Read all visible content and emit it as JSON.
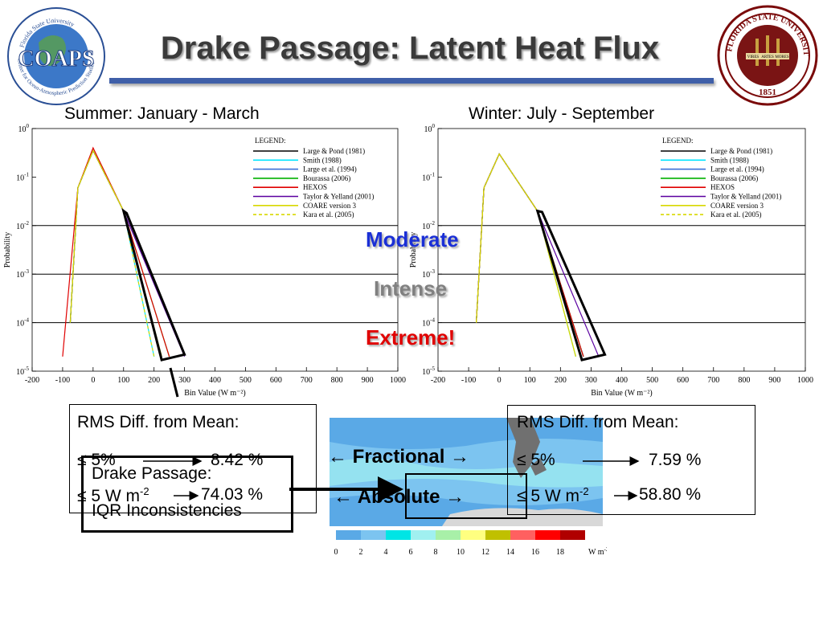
{
  "slide": {
    "title": "Drake Passage: Latent Heat Flux",
    "left_logo_text": "COAPS",
    "left_logo_ring": "Center for Ocean-Atmospheric Prediction Studies",
    "left_logo_top": "Florida State University",
    "right_seal_text": "FLORIDA STATE UNIVERSITY",
    "right_seal_year": "1851",
    "right_seal_mottos": [
      "VIRES",
      "ARTES",
      "MORES"
    ]
  },
  "panels": {
    "summer_title": "Summer: January - March",
    "winter_title": "Winter: July - September"
  },
  "levels": {
    "moderate": "Moderate",
    "intense": "Intense",
    "extreme": "Extreme!"
  },
  "summer_box": {
    "header": "RMS Diff. from Mean:",
    "frac_label": "≤ 5%",
    "frac_value": "8.42 %",
    "abs_label": "≤ 5 W m",
    "abs_sup": "-2",
    "abs_value": "74.03 %"
  },
  "winter_box": {
    "header": "RMS Diff. from Mean:",
    "frac_label": "≤ 5%",
    "frac_value": "7.59 %",
    "abs_label": "≤ 5 W m",
    "abs_sup": "-2",
    "abs_value": "58.80 %"
  },
  "overlay_box": {
    "line1": "Drake Passage:",
    "line2": "IQR Inconsistencies"
  },
  "arrows": {
    "fractional": "← Fractional →",
    "absolute": "← Absolute →"
  },
  "colorbar": {
    "ticks": [
      "0",
      "2",
      "4",
      "6",
      "8",
      "10",
      "12",
      "14",
      "16",
      "18"
    ],
    "unit": "W m",
    "unit_sup": "-2",
    "colors": [
      "#5aa9e6",
      "#7cc4f0",
      "#00e5e5",
      "#a0f0f0",
      "#a8f0a8",
      "#ffff80",
      "#c0c000",
      "#ff6060",
      "#ff0000",
      "#b00000"
    ]
  },
  "chart_data": [
    {
      "type": "line",
      "title": "",
      "xlabel": "Bin Value (W m⁻²)",
      "ylabel": "Probability",
      "yscale": "log",
      "xlim": [
        -200,
        1000
      ],
      "ylim": [
        1e-05,
        1
      ],
      "x_ticks": [
        "-200",
        "-100",
        "0",
        "100",
        "200",
        "300",
        "400",
        "500",
        "600",
        "700",
        "800",
        "900",
        "1000"
      ],
      "y_ticks": [
        "10^0",
        "10^-1",
        "10^-2",
        "10^-3",
        "10^-4",
        "10^-5"
      ],
      "legend_title": "LEGEND:",
      "legend_position": "top-right",
      "series": [
        {
          "name": "Large & Pond (1981)",
          "color": "#000000",
          "x": [
            -75,
            -50,
            0,
            100,
            225
          ],
          "y": [
            0.0001,
            0.06,
            0.35,
            0.02,
            2e-05
          ]
        },
        {
          "name": "Smith (1988)",
          "color": "#00e5ff",
          "x": [
            -75,
            -50,
            0,
            100,
            200
          ],
          "y": [
            0.0001,
            0.06,
            0.35,
            0.02,
            2e-05
          ]
        },
        {
          "name": "Large et al. (1994)",
          "color": "#3a6fd8",
          "x": [
            -75,
            -50,
            0,
            100,
            225
          ],
          "y": [
            0.0001,
            0.06,
            0.35,
            0.02,
            2e-05
          ]
        },
        {
          "name": "Bourassa (2006)",
          "color": "#00b000",
          "x": [
            -75,
            -50,
            0,
            100,
            250
          ],
          "y": [
            0.0001,
            0.06,
            0.35,
            0.02,
            2e-05
          ]
        },
        {
          "name": "HEXOS",
          "color": "#e00000",
          "x": [
            -100,
            -50,
            0,
            100,
            250
          ],
          "y": [
            2e-05,
            0.06,
            0.4,
            0.02,
            2e-05
          ]
        },
        {
          "name": "Taylor & Yelland (2001)",
          "color": "#5a00a0",
          "x": [
            -75,
            -50,
            0,
            100,
            300
          ],
          "y": [
            0.0001,
            0.06,
            0.35,
            0.02,
            2e-05
          ]
        },
        {
          "name": "COARE version 3",
          "color": "#d8d800",
          "x": [
            -75,
            -50,
            0,
            100,
            225
          ],
          "y": [
            0.0001,
            0.06,
            0.35,
            0.02,
            2e-05
          ]
        },
        {
          "name": "Kara et al. (2005)",
          "color": "#d8d800",
          "dashed": true,
          "x": [
            -75,
            -50,
            0,
            100,
            200
          ],
          "y": [
            0.0001,
            0.06,
            0.35,
            0.02,
            2e-05
          ]
        }
      ]
    },
    {
      "type": "line",
      "title": "",
      "xlabel": "Bin Value (W m⁻²)",
      "ylabel": "Probability",
      "yscale": "log",
      "xlim": [
        -200,
        1000
      ],
      "ylim": [
        1e-05,
        1
      ],
      "x_ticks": [
        "-200",
        "-100",
        "0",
        "100",
        "200",
        "300",
        "400",
        "500",
        "600",
        "700",
        "800",
        "900",
        "1000"
      ],
      "y_ticks": [
        "10^0",
        "10^-1",
        "10^-2",
        "10^-3",
        "10^-4",
        "10^-5"
      ],
      "legend_title": "LEGEND:",
      "legend_position": "top-right",
      "series": [
        {
          "name": "Large & Pond (1981)",
          "color": "#000000",
          "x": [
            -75,
            -50,
            0,
            125,
            275
          ],
          "y": [
            0.0001,
            0.06,
            0.3,
            0.02,
            2e-05
          ]
        },
        {
          "name": "Smith (1988)",
          "color": "#00e5ff",
          "x": [
            -75,
            -50,
            0,
            125,
            250
          ],
          "y": [
            0.0001,
            0.06,
            0.3,
            0.02,
            2e-05
          ]
        },
        {
          "name": "Large et al. (1994)",
          "color": "#3a6fd8",
          "x": [
            -75,
            -50,
            0,
            125,
            275
          ],
          "y": [
            0.0001,
            0.06,
            0.3,
            0.02,
            2e-05
          ]
        },
        {
          "name": "Bourassa (2006)",
          "color": "#00b000",
          "x": [
            -75,
            -50,
            0,
            125,
            275
          ],
          "y": [
            0.0001,
            0.06,
            0.3,
            0.02,
            2e-05
          ]
        },
        {
          "name": "HEXOS",
          "color": "#e00000",
          "x": [
            -75,
            -50,
            0,
            125,
            275
          ],
          "y": [
            0.0001,
            0.06,
            0.3,
            0.02,
            2e-05
          ]
        },
        {
          "name": "Taylor & Yelland (2001)",
          "color": "#5a00a0",
          "x": [
            -75,
            -50,
            0,
            125,
            325
          ],
          "y": [
            0.0001,
            0.06,
            0.3,
            0.02,
            2e-05
          ]
        },
        {
          "name": "COARE version 3",
          "color": "#d8d800",
          "x": [
            -75,
            -50,
            0,
            125,
            250
          ],
          "y": [
            0.0001,
            0.06,
            0.3,
            0.02,
            2e-05
          ]
        },
        {
          "name": "Kara et al. (2005)",
          "color": "#d8d800",
          "dashed": true,
          "x": [
            -75,
            -50,
            0,
            125,
            250
          ],
          "y": [
            0.0001,
            0.06,
            0.3,
            0.02,
            2e-05
          ]
        }
      ]
    }
  ]
}
